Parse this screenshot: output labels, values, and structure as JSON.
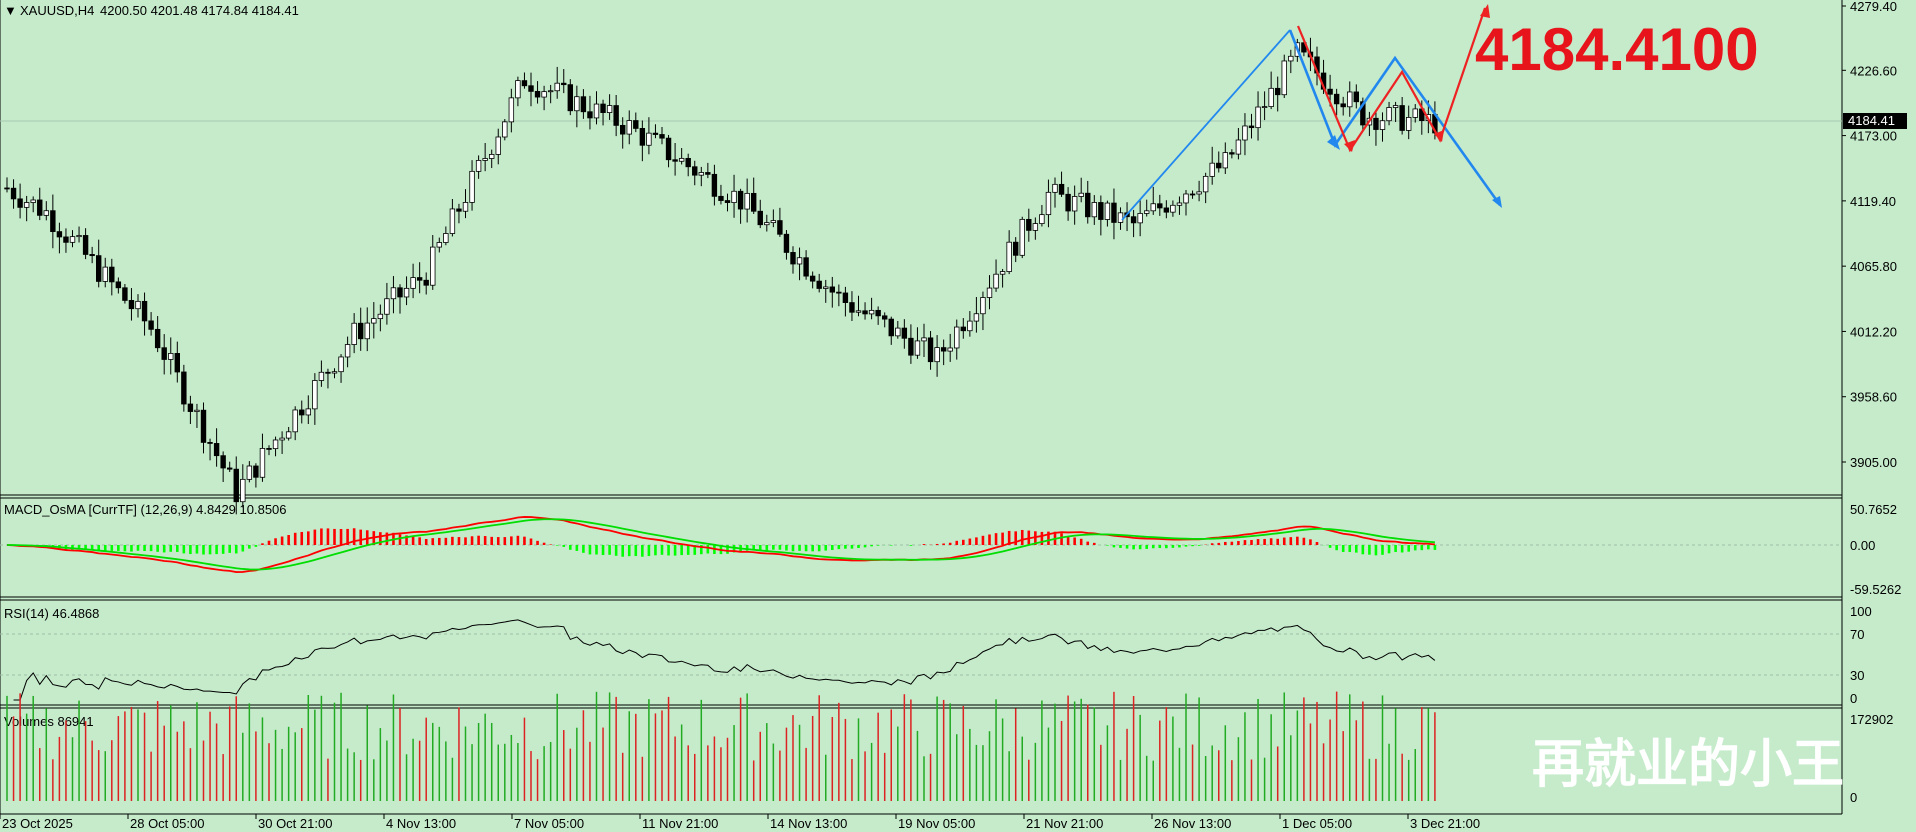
{
  "header": {
    "symbol": "XAUUSD,H4",
    "ohlc": "4200.50 4201.48 4174.84 4184.41",
    "big_price": "4184.4100",
    "watermark": "再就业的小王"
  },
  "price_axis": {
    "ticks": [
      "4279.40",
      "4226.60",
      "4173.00",
      "4119.40",
      "4065.80",
      "4012.20",
      "3958.60",
      "3905.00"
    ],
    "current_label": "4184.41",
    "current_value": 4184.41
  },
  "macd": {
    "label": "MACD_OsMA [CurrTF] (12,26,9) 4.8429 10.8506",
    "ticks": [
      "50.7652",
      "0.00",
      "-59.5262"
    ]
  },
  "rsi": {
    "label": "RSI(14) 46.4868",
    "ticks": [
      "100",
      "70",
      "30",
      "0"
    ]
  },
  "volumes": {
    "label": "Volumes 86941",
    "ticks": [
      "172902",
      "0"
    ]
  },
  "time_axis": [
    "23 Oct 2025",
    "28 Oct 05:00",
    "30 Oct 21:00",
    "4 Nov 13:00",
    "7 Nov 05:00",
    "11 Nov 21:00",
    "14 Nov 13:00",
    "19 Nov 05:00",
    "21 Nov 21:00",
    "26 Nov 13:00",
    "1 Dec 05:00",
    "3 Dec 21:00"
  ],
  "colors": {
    "background": "#c5ebcb",
    "bull_candle": "#ffffff",
    "bear_candle": "#000000",
    "macd_up": "#ff0000",
    "macd_down": "#00ff00",
    "signal_red": "#ff0000",
    "signal_green": "#00dd00",
    "annotation_blue": "#2288ee",
    "annotation_red": "#ee2222",
    "big_price": "#e8141c"
  },
  "chart_data": {
    "type": "candlestick",
    "note_units": "price in USD",
    "series": [
      {
        "name": "XAUUSD,H4"
      }
    ],
    "anchors_x": [
      0,
      6,
      22,
      35,
      53,
      64,
      79,
      95,
      112,
      127,
      142,
      159,
      172,
      186,
      197,
      207,
      218
    ],
    "anchors_p": [
      4130,
      4110,
      4015,
      3880,
      4010,
      4060,
      4220,
      4180,
      4120,
      4040,
      3990,
      4125,
      4100,
      4150,
      4240,
      4190,
      4184
    ],
    "ylim": [
      3878,
      4286
    ]
  }
}
